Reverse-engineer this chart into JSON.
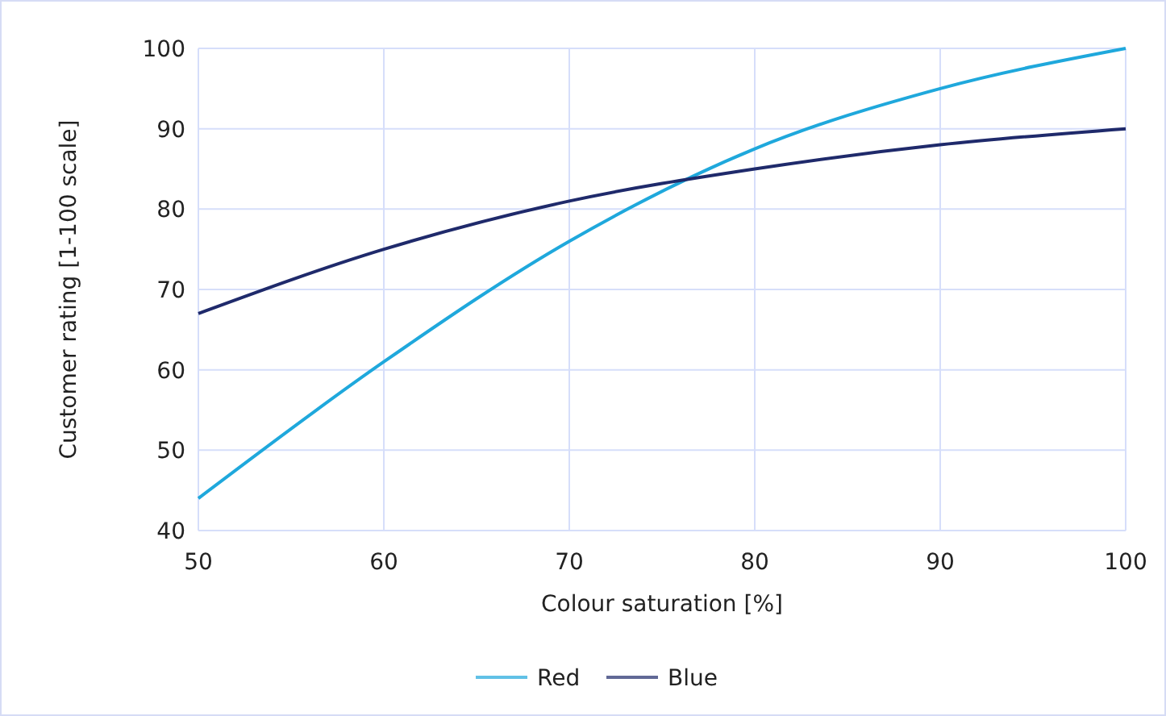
{
  "chart_data": {
    "type": "line",
    "xlabel": "Colour saturation [%]",
    "ylabel": "Customer rating [1-100 scale]",
    "x": [
      50,
      60,
      70,
      80,
      90,
      100
    ],
    "series": [
      {
        "name": "Red",
        "color": "#1fa8dc",
        "values": [
          44,
          61,
          76,
          87.5,
          95,
          100
        ]
      },
      {
        "name": "Blue",
        "color": "#1f2a6b",
        "values": [
          67,
          75,
          81,
          85,
          88,
          90
        ]
      }
    ],
    "xlim": [
      50,
      100
    ],
    "xticks": [
      50,
      60,
      70,
      80,
      90,
      100
    ],
    "ylim": [
      40,
      100
    ],
    "yticks": [
      40,
      50,
      60,
      70,
      80,
      90,
      100
    ],
    "grid": true,
    "legend": "bottom",
    "marker": "none",
    "line_style": "solid"
  }
}
